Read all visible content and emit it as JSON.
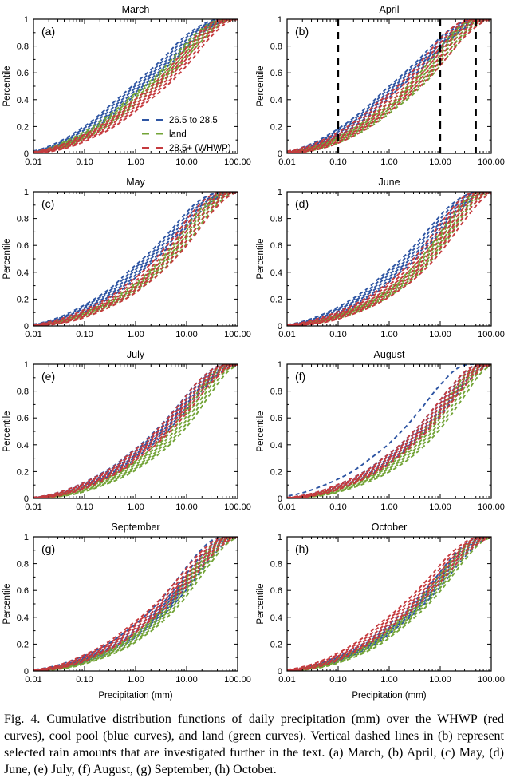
{
  "figure": {
    "caption": "Fig. 4. Cumulative distribution functions of daily precipitation (mm) over the WHWP (red curves), cool pool (blue curves), and land (green curves). Vertical dashed lines in (b) represent selected rain amounts that are investigated further in the text. (a) March, (b) April, (c) May, (d) June, (e) July, (f) August, (g) September, (h) October."
  },
  "colors": {
    "blue": "#2e55a3",
    "green": "#73a437",
    "red": "#c53a3e",
    "axis": "#000000",
    "vline": "#000000"
  },
  "legend": {
    "entries": [
      {
        "label": "26.5 to 28.5",
        "color": "blue"
      },
      {
        "label": "land",
        "color": "green"
      },
      {
        "label": "28.5+ (WHWP)",
        "color": "red"
      }
    ]
  },
  "chart_data": {
    "type": "line",
    "x_scale": "log",
    "xlabel": "Precipitation (mm)",
    "ylabel": "Percentile",
    "xlim": [
      0.01,
      100
    ],
    "ylim": [
      0,
      1
    ],
    "x_ticks": [
      "0.01",
      "0.10",
      "1.00",
      "10.00",
      "100.00"
    ],
    "y_ticks": [
      "0",
      "0.2",
      "0.4",
      "0.6",
      "0.8",
      "1"
    ],
    "x_values_mm": [
      0.01,
      0.02,
      0.05,
      0.1,
      0.2,
      0.5,
      1,
      2,
      5,
      10,
      20,
      50,
      100
    ],
    "panels": [
      {
        "id": "a",
        "letter": "(a)",
        "title": "March",
        "legend": true,
        "xlabel_visible": false,
        "vlines": [],
        "series": [
          {
            "name": "26.5 to 28.5",
            "color": "blue",
            "members": 6,
            "spread": 0.13,
            "values": [
              0.01,
              0.035,
              0.1,
              0.17,
              0.25,
              0.38,
              0.48,
              0.58,
              0.72,
              0.84,
              0.93,
              0.995,
              1.0
            ]
          },
          {
            "name": "land",
            "color": "green",
            "members": 6,
            "spread": 0.13,
            "values": [
              0.007,
              0.025,
              0.08,
              0.135,
              0.2,
              0.31,
              0.41,
              0.5,
              0.64,
              0.77,
              0.89,
              0.99,
              1.0
            ]
          },
          {
            "name": "28.5+ (WHWP)",
            "color": "red",
            "members": 6,
            "spread": 0.15,
            "values": [
              0.006,
              0.022,
              0.065,
              0.115,
              0.17,
              0.27,
              0.36,
              0.45,
              0.59,
              0.72,
              0.86,
              0.985,
              1.0
            ]
          }
        ]
      },
      {
        "id": "b",
        "letter": "(b)",
        "title": "April",
        "legend": false,
        "xlabel_visible": false,
        "vlines": [
          0.1,
          10,
          50
        ],
        "series": [
          {
            "name": "26.5 to 28.5",
            "color": "blue",
            "members": 6,
            "spread": 0.12,
            "values": [
              0.008,
              0.03,
              0.09,
              0.155,
              0.23,
              0.35,
              0.46,
              0.56,
              0.7,
              0.82,
              0.92,
              0.995,
              1.0
            ]
          },
          {
            "name": "land",
            "color": "green",
            "members": 6,
            "spread": 0.14,
            "values": [
              0.005,
              0.018,
              0.055,
              0.1,
              0.155,
              0.25,
              0.34,
              0.43,
              0.58,
              0.72,
              0.865,
              0.985,
              1.0
            ]
          },
          {
            "name": "28.5+ (WHWP)",
            "color": "red",
            "members": 7,
            "spread": 0.22,
            "values": [
              0.006,
              0.022,
              0.065,
              0.115,
              0.175,
              0.28,
              0.38,
              0.47,
              0.62,
              0.755,
              0.885,
              0.99,
              1.0
            ]
          }
        ]
      },
      {
        "id": "c",
        "letter": "(c)",
        "title": "May",
        "legend": false,
        "xlabel_visible": false,
        "vlines": [],
        "series": [
          {
            "name": "26.5 to 28.5",
            "color": "blue",
            "members": 6,
            "spread": 0.13,
            "values": [
              0.007,
              0.025,
              0.075,
              0.13,
              0.195,
              0.3,
              0.41,
              0.51,
              0.66,
              0.79,
              0.91,
              0.99,
              1.0
            ]
          },
          {
            "name": "land",
            "color": "green",
            "members": 6,
            "spread": 0.12,
            "values": [
              0.005,
              0.015,
              0.045,
              0.082,
              0.13,
              0.205,
              0.285,
              0.375,
              0.53,
              0.67,
              0.83,
              0.975,
              1.0
            ]
          },
          {
            "name": "28.5+ (WHWP)",
            "color": "red",
            "members": 6,
            "spread": 0.19,
            "values": [
              0.005,
              0.016,
              0.05,
              0.09,
              0.14,
              0.22,
              0.305,
              0.395,
              0.55,
              0.69,
              0.845,
              0.98,
              1.0
            ]
          }
        ]
      },
      {
        "id": "d",
        "letter": "(d)",
        "title": "June",
        "legend": false,
        "xlabel_visible": false,
        "vlines": [],
        "series": [
          {
            "name": "26.5 to 28.5",
            "color": "blue",
            "members": 6,
            "spread": 0.14,
            "values": [
              0.006,
              0.02,
              0.065,
              0.115,
              0.175,
              0.275,
              0.375,
              0.47,
              0.625,
              0.76,
              0.885,
              0.985,
              1.0
            ]
          },
          {
            "name": "land",
            "color": "green",
            "members": 6,
            "spread": 0.12,
            "values": [
              0.004,
              0.012,
              0.038,
              0.07,
              0.11,
              0.18,
              0.25,
              0.335,
              0.485,
              0.63,
              0.79,
              0.965,
              1.0
            ]
          },
          {
            "name": "28.5+ (WHWP)",
            "color": "red",
            "members": 7,
            "spread": 0.21,
            "values": [
              0.004,
              0.013,
              0.042,
              0.078,
              0.12,
              0.195,
              0.27,
              0.355,
              0.505,
              0.65,
              0.805,
              0.97,
              1.0
            ]
          }
        ]
      },
      {
        "id": "e",
        "letter": "(e)",
        "title": "July",
        "legend": false,
        "xlabel_visible": false,
        "vlines": [],
        "series": [
          {
            "name": "26.5 to 28.5",
            "color": "blue",
            "members": 6,
            "spread": 0.12,
            "values": [
              0.005,
              0.017,
              0.055,
              0.1,
              0.155,
              0.245,
              0.335,
              0.43,
              0.58,
              0.715,
              0.855,
              0.98,
              1.0
            ]
          },
          {
            "name": "land",
            "color": "green",
            "members": 6,
            "spread": 0.14,
            "values": [
              0.003,
              0.011,
              0.035,
              0.068,
              0.108,
              0.175,
              0.245,
              0.325,
              0.465,
              0.6,
              0.765,
              0.955,
              1.0
            ]
          },
          {
            "name": "28.5+ (WHWP)",
            "color": "red",
            "members": 6,
            "spread": 0.14,
            "values": [
              0.005,
              0.016,
              0.052,
              0.095,
              0.148,
              0.235,
              0.325,
              0.415,
              0.565,
              0.7,
              0.845,
              0.975,
              1.0
            ]
          }
        ]
      },
      {
        "id": "f",
        "letter": "(f)",
        "title": "August",
        "legend": false,
        "xlabel_visible": false,
        "vlines": [],
        "series": [
          {
            "name": "26.5 to 28.5",
            "color": "blue",
            "members": 6,
            "spread": 0.12,
            "extra_offsets": [
              -0.36
            ],
            "values": [
              0.004,
              0.014,
              0.046,
              0.086,
              0.134,
              0.215,
              0.3,
              0.39,
              0.54,
              0.675,
              0.82,
              0.97,
              1.0
            ]
          },
          {
            "name": "land",
            "color": "green",
            "members": 6,
            "spread": 0.14,
            "values": [
              0.003,
              0.01,
              0.032,
              0.062,
              0.1,
              0.165,
              0.23,
              0.31,
              0.45,
              0.585,
              0.745,
              0.95,
              1.0
            ]
          },
          {
            "name": "28.5+ (WHWP)",
            "color": "red",
            "members": 6,
            "spread": 0.13,
            "values": [
              0.004,
              0.014,
              0.045,
              0.085,
              0.132,
              0.21,
              0.295,
              0.385,
              0.535,
              0.67,
              0.815,
              0.97,
              1.0
            ]
          }
        ]
      },
      {
        "id": "g",
        "letter": "(g)",
        "title": "September",
        "legend": false,
        "xlabel_visible": true,
        "vlines": [],
        "series": [
          {
            "name": "26.5 to 28.5",
            "color": "blue",
            "members": 6,
            "spread": 0.12,
            "extra_offsets": [
              -0.22
            ],
            "values": [
              0.004,
              0.013,
              0.043,
              0.082,
              0.128,
              0.205,
              0.285,
              0.375,
              0.525,
              0.665,
              0.815,
              0.97,
              1.0
            ]
          },
          {
            "name": "land",
            "color": "green",
            "members": 6,
            "spread": 0.13,
            "values": [
              0.003,
              0.011,
              0.035,
              0.068,
              0.108,
              0.175,
              0.25,
              0.335,
              0.48,
              0.625,
              0.785,
              0.96,
              1.0
            ]
          },
          {
            "name": "28.5+ (WHWP)",
            "color": "red",
            "members": 6,
            "spread": 0.14,
            "values": [
              0.005,
              0.016,
              0.052,
              0.097,
              0.15,
              0.24,
              0.33,
              0.42,
              0.565,
              0.7,
              0.84,
              0.975,
              1.0
            ]
          }
        ]
      },
      {
        "id": "h",
        "letter": "(h)",
        "title": "October",
        "legend": false,
        "xlabel_visible": true,
        "vlines": [],
        "series": [
          {
            "name": "26.5 to 28.5",
            "color": "blue",
            "members": 6,
            "spread": 0.12,
            "values": [
              0.004,
              0.014,
              0.048,
              0.09,
              0.14,
              0.225,
              0.315,
              0.405,
              0.55,
              0.68,
              0.825,
              0.97,
              1.0
            ]
          },
          {
            "name": "land",
            "color": "green",
            "members": 6,
            "spread": 0.13,
            "values": [
              0.004,
              0.012,
              0.04,
              0.077,
              0.122,
              0.2,
              0.285,
              0.375,
              0.52,
              0.655,
              0.805,
              0.965,
              1.0
            ]
          },
          {
            "name": "28.5+ (WHWP)",
            "color": "red",
            "members": 6,
            "spread": 0.15,
            "values": [
              0.005,
              0.018,
              0.058,
              0.107,
              0.165,
              0.265,
              0.365,
              0.455,
              0.6,
              0.725,
              0.855,
              0.975,
              1.0
            ]
          }
        ]
      }
    ]
  }
}
